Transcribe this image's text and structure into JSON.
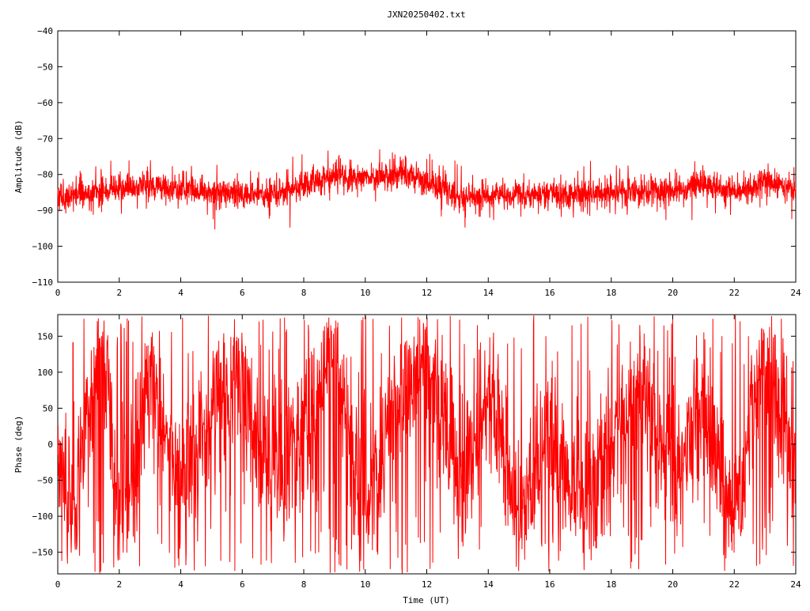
{
  "title": "JXN20250402.txt",
  "chart_data": [
    {
      "type": "line",
      "title": "JXN20250402.txt",
      "xlabel": "",
      "ylabel": "Amplitude (dB)",
      "xlim": [
        0,
        24
      ],
      "ylim": [
        -110,
        -40
      ],
      "xticks": [
        0,
        2,
        4,
        6,
        8,
        10,
        12,
        14,
        16,
        18,
        20,
        22,
        24
      ],
      "yticks": [
        -110,
        -100,
        -90,
        -80,
        -70,
        -60,
        -50,
        -40
      ],
      "grid": false,
      "series": [
        {
          "color": "#ff0000",
          "x": [
            0,
            0.5,
            1,
            2,
            3,
            4,
            5,
            6,
            7,
            8,
            9,
            10,
            11,
            11.5,
            12,
            13,
            14,
            15,
            16,
            17,
            18,
            19,
            20,
            21,
            22,
            22.5,
            23,
            24
          ],
          "y": [
            -87,
            -86,
            -85,
            -84,
            -83,
            -84.5,
            -84.5,
            -85.5,
            -85.5,
            -83,
            -80.5,
            -81,
            -80,
            -80,
            -82,
            -86,
            -86,
            -86,
            -85,
            -86,
            -85,
            -85,
            -84.5,
            -83,
            -85,
            -84,
            -81,
            -85
          ],
          "noise_db": 3.5
        }
      ]
    },
    {
      "type": "line",
      "title": "",
      "xlabel": "Time (UT)",
      "ylabel": "Phase (deg)",
      "xlim": [
        0,
        24
      ],
      "ylim": [
        -180,
        180
      ],
      "xticks": [
        0,
        2,
        4,
        6,
        8,
        10,
        12,
        14,
        16,
        18,
        20,
        22,
        24
      ],
      "yticks": [
        -150,
        -100,
        -50,
        0,
        50,
        100,
        150
      ],
      "grid": false,
      "series": [
        {
          "color": "#ff0000",
          "x": [
            0,
            0.5,
            1,
            1.5,
            2,
            3,
            4,
            5,
            6,
            7,
            8,
            9,
            10,
            11,
            12,
            13,
            14,
            15,
            16,
            17,
            18,
            19,
            20,
            21,
            22,
            23,
            24
          ],
          "y": [
            0,
            -120,
            60,
            170,
            -150,
            110,
            -60,
            40,
            90,
            -50,
            10,
            150,
            -120,
            80,
            120,
            -40,
            60,
            -90,
            20,
            -100,
            0,
            100,
            -50,
            50,
            -120,
            150,
            -50
          ],
          "wrap_deg": 360
        }
      ]
    }
  ]
}
